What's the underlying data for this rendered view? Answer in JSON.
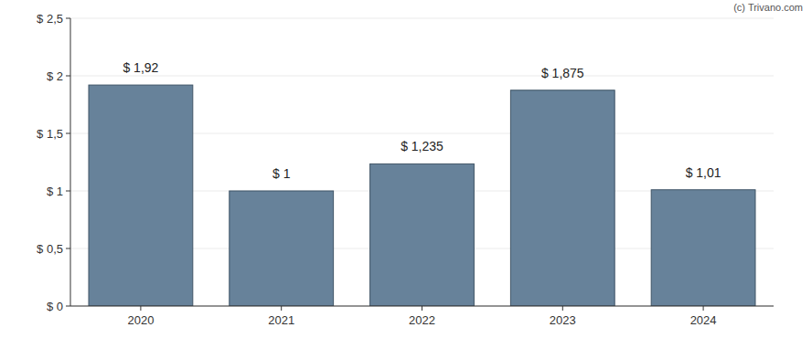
{
  "chart_data": {
    "type": "bar",
    "annotations": [
      "(c) Trivano.com"
    ],
    "categories": [
      "2020",
      "2021",
      "2022",
      "2023",
      "2024"
    ],
    "values": [
      1.92,
      1,
      1.235,
      1.875,
      1.01
    ],
    "value_labels": [
      "$ 1,92",
      "$ 1",
      "$ 1,235",
      "$ 1,875",
      "$ 1,01"
    ],
    "data_labels": true,
    "color": "#67829a",
    "ylim": [
      0,
      2.5
    ],
    "yticks": [
      {
        "value": 0,
        "label": "$ 0"
      },
      {
        "value": 0.5,
        "label": "$ 0,5"
      },
      {
        "value": 1,
        "label": "$ 1"
      },
      {
        "value": 1.5,
        "label": "$ 1,5"
      },
      {
        "value": 2,
        "label": "$ 2"
      },
      {
        "value": 2.5,
        "label": "$ 2,5"
      }
    ],
    "grid": true
  }
}
